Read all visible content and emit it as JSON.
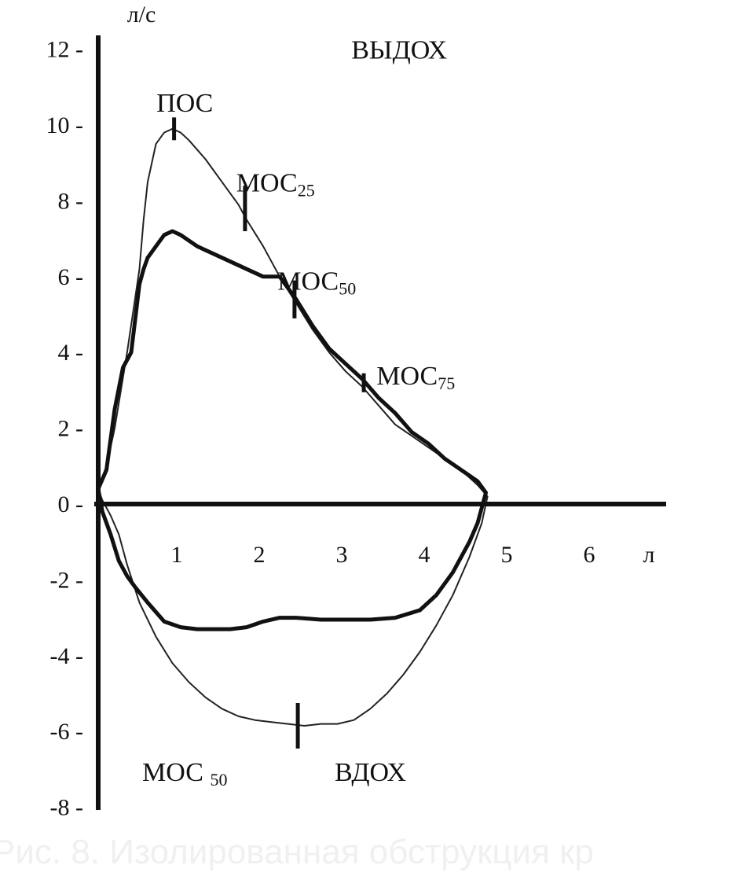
{
  "chart_data": {
    "type": "line",
    "title": "",
    "xlabel": "л",
    "ylabel": "л/с",
    "xlim": [
      0,
      6.7
    ],
    "ylim": [
      -8,
      12.5
    ],
    "x_ticks": [
      1,
      2,
      3,
      4,
      5,
      6
    ],
    "x_tick_labels": [
      "1",
      "2",
      "3",
      "4",
      "5",
      "6"
    ],
    "y_ticks": [
      12,
      10,
      8,
      6,
      4,
      2,
      0,
      -2,
      -4,
      -6,
      -8
    ],
    "y_tick_labels": [
      "12 -",
      "10 -",
      "8 -",
      "6 -",
      "4 -",
      "2 -",
      "0 -",
      "-2 -",
      "-4 -",
      "-6 -",
      "-8 -"
    ],
    "grid": false,
    "legend": "none",
    "series": [
      {
        "style": "thin",
        "color": "#222222",
        "x": [
          0.0,
          0.1,
          0.2,
          0.35,
          0.5,
          0.55,
          0.6,
          0.7,
          0.8,
          0.9,
          1.0,
          1.1,
          1.3,
          1.5,
          1.7,
          1.8,
          2.0,
          2.2,
          2.4,
          2.6,
          2.8,
          3.0,
          3.2,
          3.4,
          3.6,
          3.8,
          4.0,
          4.2,
          4.4,
          4.6,
          4.72,
          4.65,
          4.5,
          4.3,
          4.1,
          3.9,
          3.7,
          3.5,
          3.3,
          3.1,
          2.9,
          2.7,
          2.5,
          2.3,
          2.1,
          1.9,
          1.7,
          1.5,
          1.3,
          1.1,
          0.9,
          0.7,
          0.5,
          0.35,
          0.25,
          0.15,
          0.05,
          0.0
        ],
        "y": [
          0.4,
          1.0,
          2.0,
          4.0,
          6.2,
          7.5,
          8.5,
          9.5,
          9.8,
          9.9,
          9.8,
          9.6,
          9.1,
          8.5,
          7.9,
          7.5,
          6.8,
          6.0,
          5.3,
          4.6,
          4.0,
          3.5,
          3.1,
          2.6,
          2.1,
          1.8,
          1.5,
          1.2,
          0.9,
          0.5,
          0.2,
          -0.5,
          -1.4,
          -2.4,
          -3.2,
          -3.9,
          -4.5,
          -5.0,
          -5.4,
          -5.7,
          -5.8,
          -5.8,
          -5.85,
          -5.8,
          -5.75,
          -5.7,
          -5.6,
          -5.4,
          -5.1,
          -4.7,
          -4.2,
          -3.5,
          -2.6,
          -1.6,
          -0.8,
          -0.3,
          0.1,
          0.4
        ]
      },
      {
        "style": "thick",
        "color": "#111111",
        "x": [
          0.0,
          0.1,
          0.2,
          0.3,
          0.4,
          0.5,
          0.55,
          0.6,
          0.7,
          0.8,
          0.9,
          1.0,
          1.2,
          1.5,
          1.8,
          2.0,
          2.2,
          2.4,
          2.6,
          2.8,
          3.0,
          3.2,
          3.4,
          3.6,
          3.8,
          4.0,
          4.2,
          4.4,
          4.6,
          4.7,
          4.6,
          4.5,
          4.3,
          4.1,
          3.9,
          3.6,
          3.3,
          3.0,
          2.7,
          2.4,
          2.2,
          2.0,
          1.8,
          1.6,
          1.4,
          1.2,
          1.0,
          0.8,
          0.6,
          0.45,
          0.35,
          0.25,
          0.15,
          0.05,
          0.0
        ],
        "y": [
          0.4,
          0.9,
          2.5,
          3.6,
          4.0,
          5.8,
          6.2,
          6.5,
          6.8,
          7.1,
          7.2,
          7.1,
          6.8,
          6.5,
          6.2,
          6.0,
          6.0,
          5.4,
          4.7,
          4.1,
          3.7,
          3.3,
          2.8,
          2.4,
          1.9,
          1.6,
          1.2,
          0.9,
          0.6,
          0.3,
          -0.5,
          -1.0,
          -1.8,
          -2.4,
          -2.8,
          -3.0,
          -3.05,
          -3.05,
          -3.05,
          -3.0,
          -3.0,
          -3.1,
          -3.25,
          -3.3,
          -3.3,
          -3.3,
          -3.25,
          -3.1,
          -2.6,
          -2.2,
          -1.9,
          -1.5,
          -0.8,
          -0.2,
          0.4
        ]
      }
    ],
    "markers": [
      {
        "x": 0.92,
        "y": 9.9,
        "half_height": 0.3
      },
      {
        "x": 1.78,
        "y": 7.8,
        "half_height": 0.6
      },
      {
        "x": 2.38,
        "y": 5.4,
        "half_height": 0.5
      },
      {
        "x": 3.22,
        "y": 3.2,
        "half_height": 0.25
      },
      {
        "x": 2.42,
        "y": -5.85,
        "half_height": 0.6
      }
    ],
    "annotations": [
      {
        "text": "ВЫДОХ",
        "sub": "",
        "x": 3.65,
        "y": 12.0
      },
      {
        "text": "ПОС",
        "sub": "",
        "x": 1.05,
        "y": 10.6
      },
      {
        "text": "МОС",
        "sub": "25",
        "x": 2.15,
        "y": 8.5
      },
      {
        "text": "МОС",
        "sub": "50",
        "x": 2.65,
        "y": 5.9
      },
      {
        "text": "МОС",
        "sub": "75",
        "x": 3.85,
        "y": 3.4
      },
      {
        "text": "МОС ",
        "sub": "50",
        "x": 1.05,
        "y": -7.05
      },
      {
        "text": "ВДОХ",
        "sub": "",
        "x": 3.3,
        "y": -7.05
      }
    ]
  },
  "caption": "Рис. 8. Изолированная обструкция кр"
}
